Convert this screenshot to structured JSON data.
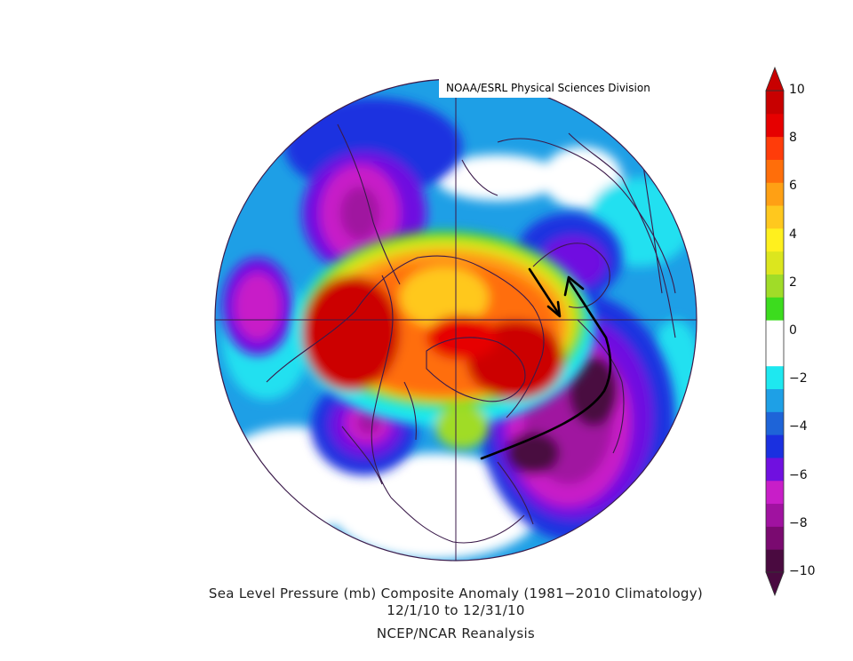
{
  "credit": "NOAA/ESRL Physical Sciences Division",
  "caption": {
    "line1": "Sea Level Pressure (mb) Composite Anomaly (1981−2010 Climatology)",
    "line2": "12/1/10   to 12/31/10",
    "line3": "NCEP/NCAR Reanalysis"
  },
  "colorbar": {
    "labels": [
      {
        "value": 10,
        "text": "10"
      },
      {
        "value": 8,
        "text": "8"
      },
      {
        "value": 6,
        "text": "6"
      },
      {
        "value": 4,
        "text": "4"
      },
      {
        "value": 2,
        "text": "2"
      },
      {
        "value": 0,
        "text": "0"
      },
      {
        "value": -2,
        "text": "−2"
      },
      {
        "value": -4,
        "text": "−4"
      },
      {
        "value": -6,
        "text": "−6"
      },
      {
        "value": -8,
        "text": "−8"
      },
      {
        "value": -10,
        "text": "−10"
      }
    ],
    "colors": [
      "#4a0a40",
      "#7a0a70",
      "#a012a0",
      "#c81ec8",
      "#7010e0",
      "#1a30e0",
      "#1e64d8",
      "#1ea0e6",
      "#1ee8f0",
      "#ffffff",
      "#ffffff",
      "#3cdc1e",
      "#a0dc28",
      "#dce61e",
      "#fff01e",
      "#ffc81e",
      "#ffa014",
      "#ff6e0a",
      "#ff3c0a",
      "#e60000",
      "#c80000"
    ],
    "min": -10,
    "max": 10,
    "step": 1
  },
  "map_colors": {
    "high_core": "#cc0000",
    "high": "#ff5010",
    "high_mid": "#ffa014",
    "high_low": "#fff01e",
    "high_edge": "#a0dc28",
    "low_core": "#4a0a40",
    "low": "#a012a0",
    "low_mid": "#7010e0",
    "low_edge": "#1e64d8",
    "neg_light": "#1ee8f0",
    "outline": "#3a1a4a"
  }
}
